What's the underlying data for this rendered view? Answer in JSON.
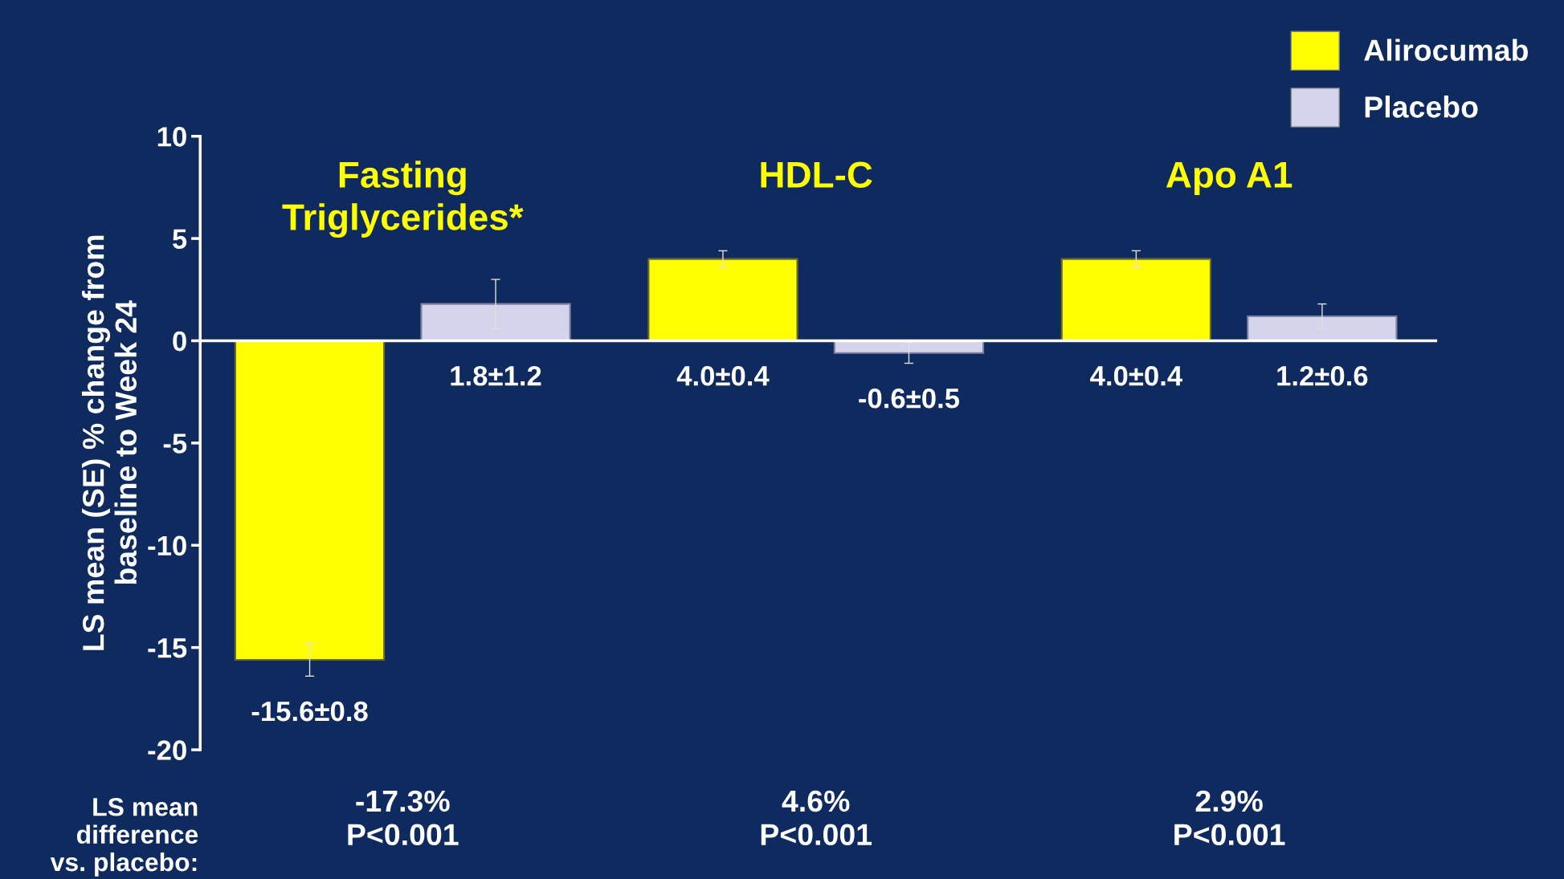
{
  "chart_data": {
    "type": "bar",
    "categories": [
      "Fasting\nTriglycerides*",
      "HDL-C",
      "Apo A1"
    ],
    "series": [
      {
        "name": "Alirocumab",
        "color": "#ffff00",
        "values": [
          -15.6,
          4.0,
          4.0
        ],
        "errors": [
          0.8,
          0.4,
          0.4
        ],
        "value_labels": [
          "-15.6±0.8",
          "4.0±0.4",
          "4.0±0.4"
        ]
      },
      {
        "name": "Placebo",
        "color": "#d4d4ec",
        "values": [
          1.8,
          -0.6,
          1.2
        ],
        "errors": [
          1.2,
          0.5,
          0.6
        ],
        "value_labels": [
          "1.8±1.2",
          "-0.6±0.5",
          "1.2±0.6"
        ]
      }
    ],
    "ylabel": "LS mean (SE) % change from\nbaseline to Week 24",
    "ylim": [
      -20,
      10
    ],
    "yticks": [
      {
        "value": -20,
        "label": "-20"
      },
      {
        "value": -15,
        "label": "-15"
      },
      {
        "value": -10,
        "label": "-10"
      },
      {
        "value": -5,
        "label": "-5"
      },
      0,
      5,
      10
    ],
    "annotations": [
      "LS mean\ndifference\nvs. placebo:",
      "-17.3%\nP<0.001",
      "4.6%\nP<0.001",
      "2.9%\nP<0.001"
    ],
    "legend": "top right"
  }
}
